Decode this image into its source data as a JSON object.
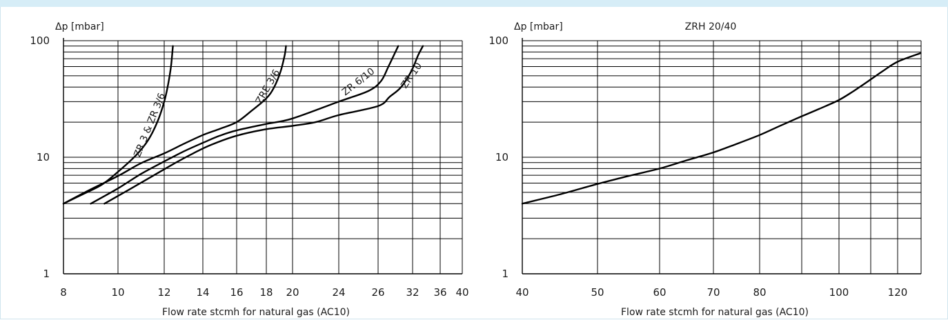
{
  "chart_data": [
    {
      "type": "line",
      "title": "",
      "ylabel": "Δp [mbar]",
      "xlabel": "Flow rate stcmh for natural gas (AC10)",
      "y_scale": "log",
      "ylim": [
        1,
        100
      ],
      "y_tick_labels": [
        "1",
        "10",
        "100"
      ],
      "x_tick_labels": [
        "8",
        "10",
        "12",
        "14",
        "16",
        "18",
        "20",
        "24",
        "26",
        "32",
        "36",
        "40"
      ],
      "grid": true,
      "series": [
        {
          "name": "ZR 3 & ZR 3/6",
          "points": [
            [
              8,
              4
            ],
            [
              8.7,
              4.8
            ],
            [
              9.4,
              5.8
            ],
            [
              10,
              7.5
            ],
            [
              10.8,
              10.5
            ],
            [
              11.3,
              14
            ],
            [
              11.7,
              20
            ],
            [
              12,
              30
            ],
            [
              12.2,
              42
            ],
            [
              12.35,
              60
            ],
            [
              12.45,
              90
            ]
          ]
        },
        {
          "name": "ZRE 3/6",
          "points": [
            [
              8,
              4
            ],
            [
              9,
              5.3
            ],
            [
              10,
              6.9
            ],
            [
              11,
              8.9
            ],
            [
              12,
              10.8
            ],
            [
              13,
              13
            ],
            [
              14,
              15.5
            ],
            [
              15,
              17.5
            ],
            [
              16,
              20
            ],
            [
              17,
              25
            ],
            [
              18,
              32
            ],
            [
              18.6,
              40
            ],
            [
              19.1,
              55
            ],
            [
              19.4,
              75
            ],
            [
              19.5,
              90
            ]
          ]
        },
        {
          "name": "ZR 6/10",
          "points": [
            [
              9,
              4
            ],
            [
              10,
              5.4
            ],
            [
              11,
              7.2
            ],
            [
              12,
              9.2
            ],
            [
              13,
              11.2
            ],
            [
              14,
              13.3
            ],
            [
              15,
              15.3
            ],
            [
              16,
              17
            ],
            [
              18,
              19.3
            ],
            [
              20,
              21.5
            ],
            [
              24,
              30
            ],
            [
              25.5,
              37
            ],
            [
              26.5,
              45
            ],
            [
              27.8,
              60
            ],
            [
              29.5,
              90
            ]
          ]
        },
        {
          "name": "ZR 10",
          "points": [
            [
              9.5,
              4
            ],
            [
              10.5,
              5.3
            ],
            [
              11.5,
              6.9
            ],
            [
              12.5,
              8.8
            ],
            [
              13.5,
              10.8
            ],
            [
              14.5,
              12.8
            ],
            [
              16,
              15.3
            ],
            [
              18,
              17.4
            ],
            [
              20,
              18.6
            ],
            [
              22,
              20
            ],
            [
              24,
              23
            ],
            [
              26,
              27.5
            ],
            [
              28,
              33
            ],
            [
              30,
              40
            ],
            [
              31.8,
              55
            ],
            [
              32.8,
              75
            ],
            [
              33.5,
              90
            ]
          ]
        }
      ]
    },
    {
      "type": "line",
      "title": "ZRH 20/40",
      "ylabel": "Δp [mbar]",
      "xlabel": "Flow rate stcmh for natural gas (AC10)",
      "y_scale": "log",
      "ylim": [
        1,
        100
      ],
      "y_tick_labels": [
        "1",
        "10",
        "100"
      ],
      "x_tick_labels": [
        "40",
        "50",
        "60",
        "70",
        "80",
        "100",
        "120"
      ],
      "grid": true,
      "series": [
        {
          "points": [
            [
              40,
              4
            ],
            [
              45,
              4.8
            ],
            [
              50,
              5.9
            ],
            [
              55,
              6.9
            ],
            [
              60,
              8
            ],
            [
              65,
              9.4
            ],
            [
              70,
              11
            ],
            [
              75,
              13
            ],
            [
              80,
              15.5
            ],
            [
              85,
              18.5
            ],
            [
              90,
              22
            ],
            [
              95,
              26
            ],
            [
              100,
              31
            ],
            [
              105,
              37
            ],
            [
              110,
              45
            ],
            [
              115,
              55
            ],
            [
              120,
              66
            ],
            [
              124,
              78
            ]
          ]
        }
      ]
    }
  ]
}
